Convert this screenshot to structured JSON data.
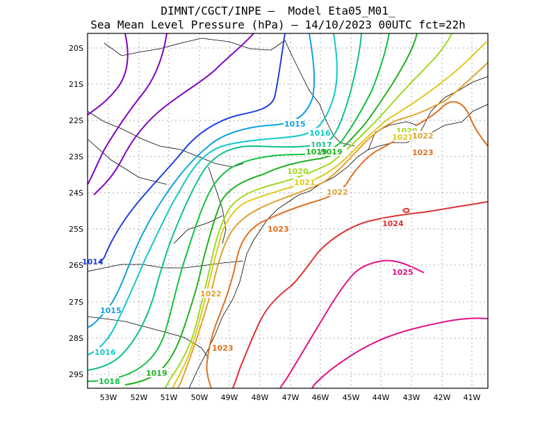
{
  "title": {
    "line1": "DIMNT/CGCT/INPE –  Model Eta05_M01_",
    "line2": "Sea Mean Level Pressure (hPa) – 14/10/2023 00UTC fct=22h"
  },
  "map": {
    "lat_ticks": [
      "20S",
      "21S",
      "22S",
      "23S",
      "24S",
      "25S",
      "26S",
      "27S",
      "28S",
      "29S"
    ],
    "lon_ticks": [
      "53W",
      "52W",
      "51W",
      "50W",
      "49W",
      "48W",
      "47W",
      "46W",
      "45W",
      "44W",
      "43W",
      "42W",
      "41W"
    ]
  },
  "isobar_labels": [
    {
      "text": "1014",
      "color": "#2040e0"
    },
    {
      "text": "1015",
      "color": "#10a0e0"
    },
    {
      "text": "1015",
      "color": "#10a0e0"
    },
    {
      "text": "1016",
      "color": "#10c8c8"
    },
    {
      "text": "1016",
      "color": "#10c8c8"
    },
    {
      "text": "1017",
      "color": "#10c090"
    },
    {
      "text": "1018",
      "color": "#10c040"
    },
    {
      "text": "1019",
      "color": "#20b020"
    },
    {
      "text": "1019",
      "color": "#20b020"
    },
    {
      "text": "1020",
      "color": "#a0d820"
    },
    {
      "text": "1020",
      "color": "#a0d820"
    },
    {
      "text": "1021",
      "color": "#e0c820"
    },
    {
      "text": "1021",
      "color": "#e0c820"
    },
    {
      "text": "1022",
      "color": "#e0a030"
    },
    {
      "text": "1022",
      "color": "#e0a030"
    },
    {
      "text": "1022",
      "color": "#e0a030"
    },
    {
      "text": "1023",
      "color": "#e07020"
    },
    {
      "text": "1023",
      "color": "#e07020"
    },
    {
      "text": "1023",
      "color": "#e07020"
    },
    {
      "text": "1024",
      "color": "#e03030"
    },
    {
      "text": "1025",
      "color": "#e01080"
    }
  ]
}
